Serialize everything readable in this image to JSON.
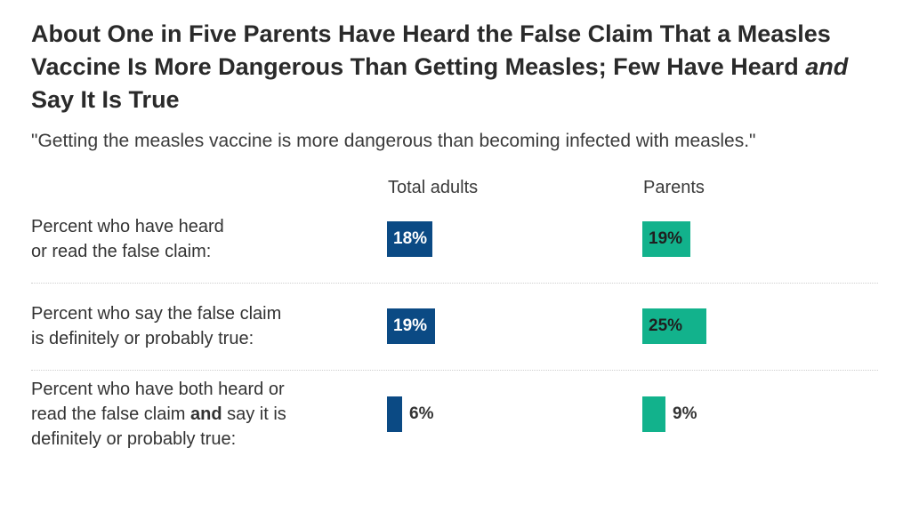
{
  "chart_data": {
    "type": "bar",
    "title": {
      "line1": "About One in Five Parents Have Heard the False Claim That a Measles",
      "line2a": "Vaccine Is More Dangerous Than Getting Measles; Few Have Heard ",
      "line2b": "and",
      "line3": "Say It Is True"
    },
    "subtitle": "\"Getting the measles vaccine is more dangerous than becoming infected with measles.\"",
    "categories": [
      {
        "parts": [
          "Percent who have heard",
          "or read the false claim:"
        ]
      },
      {
        "parts": [
          "Percent who say the false claim",
          "is definitely or probably true:"
        ]
      },
      {
        "parts": [
          "Percent who have both heard or",
          "read the false claim ",
          "and",
          " say it is",
          "definitely or probably true:"
        ]
      }
    ],
    "series": [
      {
        "name": "Total adults",
        "color": "#0b4a84",
        "values": [
          18,
          19,
          6
        ],
        "labels": [
          "18%",
          "19%",
          "6%"
        ]
      },
      {
        "name": "Parents",
        "color": "#12b28c",
        "values": [
          19,
          25,
          9
        ],
        "labels": [
          "19%",
          "25%",
          "9%"
        ]
      }
    ],
    "unit": "%",
    "grid": false,
    "legend": "column headers above bars"
  }
}
